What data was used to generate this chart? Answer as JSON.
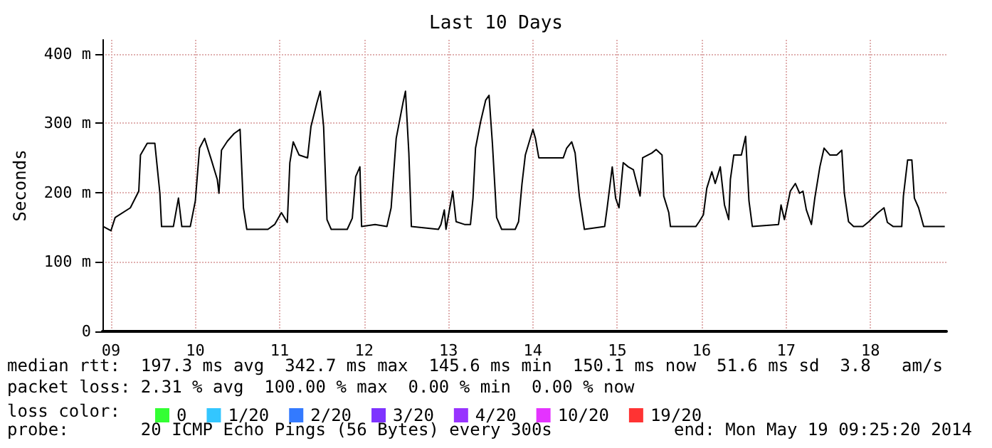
{
  "chart_data": {
    "type": "line",
    "title": "Last 10 Days",
    "ylabel": "Seconds",
    "xlim": [
      9.4,
      19.4
    ],
    "ylim": [
      0,
      420
    ],
    "xticks": [
      {
        "value": 9.5,
        "label": "09"
      },
      {
        "value": 10.5,
        "label": "10"
      },
      {
        "value": 11.5,
        "label": "11"
      },
      {
        "value": 12.5,
        "label": "12"
      },
      {
        "value": 13.5,
        "label": "13"
      },
      {
        "value": 14.5,
        "label": "14"
      },
      {
        "value": 15.5,
        "label": "15"
      },
      {
        "value": 16.5,
        "label": "16"
      },
      {
        "value": 17.5,
        "label": "17"
      },
      {
        "value": 18.5,
        "label": "18"
      }
    ],
    "yticks": [
      0,
      {
        "value": 100,
        "label": "100 m"
      },
      {
        "value": 200,
        "label": "200 m"
      },
      {
        "value": 300,
        "label": "300 m"
      },
      {
        "value": 400,
        "label": "400 m"
      }
    ],
    "grid": true,
    "marker": "none",
    "line_style": "solid",
    "legend": "bottom",
    "legend_title": "loss color:",
    "series": [
      {
        "color": "#000000",
        "x": [
          9.41,
          9.5,
          9.55,
          9.73,
          9.83,
          9.85,
          9.93,
          10.02,
          10.08,
          10.1,
          10.24,
          10.3,
          10.34,
          10.44,
          10.5,
          10.55,
          10.61,
          10.69,
          10.76,
          10.78,
          10.81,
          10.88,
          10.96,
          11.03,
          11.07,
          11.11,
          11.36,
          11.44,
          11.52,
          11.59,
          11.62,
          11.66,
          11.73,
          11.83,
          11.87,
          11.94,
          11.98,
          12.02,
          12.06,
          12.11,
          12.3,
          12.36,
          12.4,
          12.45,
          12.47,
          12.63,
          12.77,
          12.82,
          12.88,
          12.96,
          12.99,
          13.03,
          13.06,
          13.38,
          13.41,
          13.45,
          13.47,
          13.55,
          13.59,
          13.69,
          13.76,
          13.79,
          13.82,
          13.88,
          13.94,
          13.98,
          14.02,
          14.07,
          14.13,
          14.29,
          14.33,
          14.37,
          14.41,
          14.5,
          14.53,
          14.57,
          14.69,
          14.86,
          14.9,
          14.96,
          15.0,
          15.05,
          15.11,
          15.35,
          15.38,
          15.44,
          15.48,
          15.52,
          15.57,
          15.63,
          15.69,
          15.77,
          15.8,
          15.91,
          15.96,
          16.03,
          16.05,
          16.11,
          16.13,
          16.38,
          16.43,
          16.47,
          16.52,
          16.56,
          16.62,
          16.66,
          16.72,
          16.77,
          16.82,
          16.84,
          16.88,
          16.97,
          17.02,
          17.06,
          17.1,
          17.41,
          17.44,
          17.48,
          17.55,
          17.61,
          17.66,
          17.7,
          17.74,
          17.8,
          17.84,
          17.9,
          17.95,
          18.02,
          18.1,
          18.16,
          18.19,
          18.24,
          18.3,
          18.41,
          18.48,
          18.58,
          18.66,
          18.7,
          18.77,
          18.87,
          18.89,
          18.94,
          18.99,
          19.02,
          19.07,
          19.13,
          19.38
        ],
        "values": [
          151,
          145,
          164,
          178,
          202,
          254,
          271,
          271,
          199,
          151,
          151,
          192,
          151,
          151,
          188,
          264,
          278,
          247,
          219,
          199,
          261,
          274,
          285,
          291,
          178,
          147,
          147,
          154,
          171,
          157,
          243,
          273,
          254,
          250,
          295,
          329,
          346,
          295,
          161,
          147,
          147,
          163,
          223,
          237,
          151,
          154,
          151,
          178,
          278,
          329,
          346,
          257,
          151,
          147,
          154,
          175,
          147,
          202,
          158,
          154,
          154,
          192,
          264,
          302,
          333,
          340,
          271,
          164,
          147,
          147,
          158,
          212,
          254,
          291,
          278,
          250,
          250,
          250,
          264,
          273,
          257,
          195,
          147,
          151,
          178,
          237,
          192,
          178,
          243,
          237,
          233,
          195,
          250,
          257,
          262,
          254,
          195,
          171,
          151,
          151,
          151,
          158,
          168,
          206,
          230,
          213,
          237,
          182,
          161,
          219,
          254,
          254,
          281,
          188,
          151,
          154,
          182,
          161,
          202,
          213,
          199,
          202,
          175,
          154,
          192,
          237,
          264,
          254,
          254,
          261,
          199,
          158,
          151,
          151,
          158,
          170,
          178,
          157,
          151,
          151,
          195,
          247,
          247,
          192,
          178,
          151,
          151
        ]
      },
      {
        "name": "0",
        "color": "#00ff00"
      },
      {
        "name": "1/20",
        "color": "#00b8ff"
      },
      {
        "name": "2/20",
        "color": "#0059ff"
      },
      {
        "name": "3/20",
        "color": "#5e00ff"
      },
      {
        "name": "4/20",
        "color": "#7e00ff"
      },
      {
        "name": "10/20",
        "color": "#dd00ff"
      },
      {
        "name": "19/20",
        "color": "#ff0000"
      }
    ],
    "annotations": [
      "median rtt:  197.3 ms avg  342.7 ms max  145.6 ms min  150.1 ms now  51.6 ms sd  3.8   am/s",
      "packet loss: 2.31 % avg  100.00 % max  0.00 % min  0.00 % now",
      "probe:       20 ICMP Echo Pings (56 Bytes) every 300s",
      "end: Mon May 19 09:25:20 2014"
    ]
  }
}
